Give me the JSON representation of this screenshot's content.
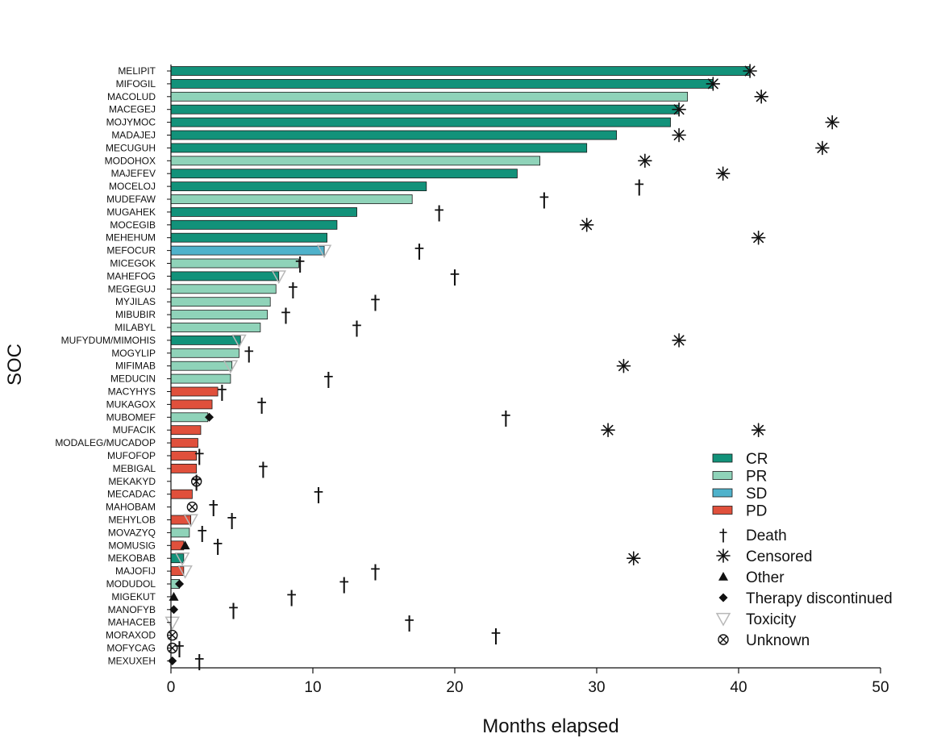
{
  "chart_data": {
    "type": "swimmer",
    "xlabel": "Months elapsed",
    "ylabel": "SOC",
    "xlim": [
      0,
      50
    ],
    "xticks": [
      0,
      10,
      20,
      30,
      40,
      50
    ],
    "colors": {
      "CR": "#12927a",
      "PR": "#8fd3b9",
      "SD": "#4fb2cb",
      "PD": "#e0503c",
      "marker": "#111111",
      "toxicity": "#b8b8b8"
    },
    "legend": {
      "position": "lower-right",
      "response": [
        {
          "key": "CR",
          "label": "CR"
        },
        {
          "key": "PR",
          "label": "PR"
        },
        {
          "key": "SD",
          "label": "SD"
        },
        {
          "key": "PD",
          "label": "PD"
        }
      ],
      "events": [
        {
          "key": "death",
          "label": "Death",
          "symbol": "†"
        },
        {
          "key": "censored",
          "label": "Censored",
          "symbol": "✳"
        },
        {
          "key": "other",
          "label": "Other",
          "symbol": "▲"
        },
        {
          "key": "discontinued",
          "label": "Therapy discontinued",
          "symbol": "◆"
        },
        {
          "key": "toxicity",
          "label": "Toxicity",
          "symbol": "▽"
        },
        {
          "key": "unknown",
          "label": "Unknown",
          "symbol": "⊗"
        }
      ]
    },
    "patients": [
      {
        "id": "MELIPIT",
        "response": "CR",
        "months": 40.8,
        "events": [
          {
            "type": "censored",
            "t": 40.8
          }
        ]
      },
      {
        "id": "MIFOGIL",
        "response": "CR",
        "months": 38.2,
        "events": [
          {
            "type": "censored",
            "t": 38.2
          }
        ]
      },
      {
        "id": "MACOLUD",
        "response": "PR",
        "months": 36.4,
        "events": [
          {
            "type": "censored",
            "t": 41.6
          }
        ]
      },
      {
        "id": "MACEGEJ",
        "response": "CR",
        "months": 35.8,
        "events": [
          {
            "type": "censored",
            "t": 35.8
          }
        ]
      },
      {
        "id": "MOJYMOC",
        "response": "CR",
        "months": 35.2,
        "events": [
          {
            "type": "censored",
            "t": 46.6
          }
        ]
      },
      {
        "id": "MADAJEJ",
        "response": "CR",
        "months": 31.4,
        "events": [
          {
            "type": "censored",
            "t": 35.8
          }
        ]
      },
      {
        "id": "MECUGUH",
        "response": "CR",
        "months": 29.3,
        "events": [
          {
            "type": "censored",
            "t": 45.9
          }
        ]
      },
      {
        "id": "MODOHOX",
        "response": "PR",
        "months": 26.0,
        "events": [
          {
            "type": "censored",
            "t": 33.4
          }
        ]
      },
      {
        "id": "MAJEFEV",
        "response": "CR",
        "months": 24.4,
        "events": [
          {
            "type": "censored",
            "t": 38.9
          }
        ]
      },
      {
        "id": "MOCELOJ",
        "response": "CR",
        "months": 18.0,
        "events": [
          {
            "type": "death",
            "t": 33.0
          }
        ]
      },
      {
        "id": "MUDEFAW",
        "response": "PR",
        "months": 17.0,
        "events": [
          {
            "type": "death",
            "t": 26.3
          }
        ]
      },
      {
        "id": "MUGAHEK",
        "response": "CR",
        "months": 13.1,
        "events": [
          {
            "type": "death",
            "t": 18.9
          }
        ]
      },
      {
        "id": "MOCEGIB",
        "response": "CR",
        "months": 11.7,
        "events": [
          {
            "type": "censored",
            "t": 29.3
          }
        ]
      },
      {
        "id": "MEHEHUM",
        "response": "CR",
        "months": 11.0,
        "events": [
          {
            "type": "censored",
            "t": 41.4
          }
        ]
      },
      {
        "id": "MEFOCUR",
        "response": "SD",
        "months": 10.8,
        "events": [
          {
            "type": "toxicity",
            "t": 10.8
          },
          {
            "type": "death",
            "t": 17.5
          }
        ]
      },
      {
        "id": "MICEGOK",
        "response": "PR",
        "months": 9.0,
        "events": [
          {
            "type": "death",
            "t": 9.1
          }
        ]
      },
      {
        "id": "MAHEFOG",
        "response": "CR",
        "months": 7.6,
        "events": [
          {
            "type": "toxicity",
            "t": 7.6
          },
          {
            "type": "death",
            "t": 20.0
          }
        ]
      },
      {
        "id": "MEGEGUJ",
        "response": "PR",
        "months": 7.4,
        "events": [
          {
            "type": "death",
            "t": 8.6
          }
        ]
      },
      {
        "id": "MYJILAS",
        "response": "PR",
        "months": 7.0,
        "events": [
          {
            "type": "death",
            "t": 14.4
          }
        ]
      },
      {
        "id": "MIBUBIR",
        "response": "PR",
        "months": 6.8,
        "events": [
          {
            "type": "death",
            "t": 8.1
          }
        ]
      },
      {
        "id": "MILABYL",
        "response": "PR",
        "months": 6.3,
        "events": [
          {
            "type": "death",
            "t": 13.1
          }
        ]
      },
      {
        "id": "MUFYDUM/MIMOHIS",
        "response": "CR",
        "months": 4.9,
        "events": [
          {
            "type": "toxicity",
            "t": 4.8
          },
          {
            "type": "censored",
            "t": 35.8
          }
        ]
      },
      {
        "id": "MOGYLIP",
        "response": "PR",
        "months": 4.8,
        "events": [
          {
            "type": "death",
            "t": 5.5
          }
        ]
      },
      {
        "id": "MIFIMAB",
        "response": "PR",
        "months": 4.3,
        "events": [
          {
            "type": "toxicity",
            "t": 4.2
          },
          {
            "type": "censored",
            "t": 31.9
          }
        ]
      },
      {
        "id": "MEDUCIN",
        "response": "PR",
        "months": 4.2,
        "events": [
          {
            "type": "death",
            "t": 11.1
          }
        ]
      },
      {
        "id": "MACYHYS",
        "response": "PD",
        "months": 3.3,
        "events": [
          {
            "type": "death",
            "t": 3.6
          }
        ]
      },
      {
        "id": "MUKAGOX",
        "response": "PD",
        "months": 2.9,
        "events": [
          {
            "type": "death",
            "t": 6.4
          }
        ]
      },
      {
        "id": "MUBOMEF",
        "response": "PR",
        "months": 2.6,
        "events": [
          {
            "type": "discontinued",
            "t": 2.7
          },
          {
            "type": "death",
            "t": 23.6
          }
        ]
      },
      {
        "id": "MUFACIK",
        "response": "PD",
        "months": 2.1,
        "events": [
          {
            "type": "censored",
            "t": 30.8
          },
          {
            "type": "censored",
            "t": 41.4
          }
        ]
      },
      {
        "id": "MODALEG/MUCADOP",
        "response": "PD",
        "months": 1.9,
        "events": []
      },
      {
        "id": "MUFOFOP",
        "response": "PD",
        "months": 1.8,
        "events": [
          {
            "type": "death",
            "t": 2.0
          }
        ]
      },
      {
        "id": "MEBIGAL",
        "response": "PD",
        "months": 1.8,
        "events": [
          {
            "type": "death",
            "t": 6.5
          }
        ]
      },
      {
        "id": "MEKAKYD",
        "response": "PD",
        "months": 0.0,
        "events": [
          {
            "type": "unknown",
            "t": 1.8
          },
          {
            "type": "death",
            "t": 1.8
          }
        ]
      },
      {
        "id": "MECADAC",
        "response": "PD",
        "months": 1.5,
        "events": [
          {
            "type": "death",
            "t": 10.4
          }
        ]
      },
      {
        "id": "MAHOBAM",
        "response": "PD",
        "months": 0.0,
        "events": [
          {
            "type": "unknown",
            "t": 1.5
          },
          {
            "type": "death",
            "t": 3.0
          }
        ]
      },
      {
        "id": "MEHYLOB",
        "response": "PD",
        "months": 1.4,
        "events": [
          {
            "type": "toxicity",
            "t": 1.4
          },
          {
            "type": "death",
            "t": 4.3
          }
        ]
      },
      {
        "id": "MOVAZYQ",
        "response": "PR",
        "months": 1.3,
        "events": [
          {
            "type": "death",
            "t": 2.2
          }
        ]
      },
      {
        "id": "MOMUSIG",
        "response": "PD",
        "months": 0.9,
        "events": [
          {
            "type": "other",
            "t": 1.0
          },
          {
            "type": "death",
            "t": 3.3
          }
        ]
      },
      {
        "id": "MEKOBAB",
        "response": "CR",
        "months": 0.9,
        "events": [
          {
            "type": "toxicity",
            "t": 0.8
          },
          {
            "type": "censored",
            "t": 32.6
          }
        ]
      },
      {
        "id": "MAJOFIJ",
        "response": "PD",
        "months": 0.9,
        "events": [
          {
            "type": "toxicity",
            "t": 1.0
          },
          {
            "type": "death",
            "t": 14.4
          }
        ]
      },
      {
        "id": "MODUDOL",
        "response": "PR",
        "months": 0.6,
        "events": [
          {
            "type": "discontinued",
            "t": 0.6
          },
          {
            "type": "death",
            "t": 12.2
          }
        ]
      },
      {
        "id": "MIGEKUT",
        "response": "PD",
        "months": 0.0,
        "events": [
          {
            "type": "other",
            "t": 0.2
          },
          {
            "type": "death",
            "t": 8.5
          }
        ]
      },
      {
        "id": "MANOFYB",
        "response": "PD",
        "months": 0.0,
        "events": [
          {
            "type": "discontinued",
            "t": 0.2
          },
          {
            "type": "death",
            "t": 4.4
          }
        ]
      },
      {
        "id": "MAHACEB",
        "response": "PD",
        "months": 0.0,
        "events": [
          {
            "type": "toxicity",
            "t": 0.1
          },
          {
            "type": "death",
            "t": 16.8
          }
        ]
      },
      {
        "id": "MORAXOD",
        "response": "PD",
        "months": 0.0,
        "events": [
          {
            "type": "other",
            "t": 0.1
          },
          {
            "type": "unknown",
            "t": 0.1
          },
          {
            "type": "death",
            "t": 22.9
          }
        ]
      },
      {
        "id": "MOFYCAG",
        "response": "PD",
        "months": 0.0,
        "events": [
          {
            "type": "unknown",
            "t": 0.1
          },
          {
            "type": "death",
            "t": 0.6
          }
        ]
      },
      {
        "id": "MEXUXEH",
        "response": "PD",
        "months": 0.0,
        "events": [
          {
            "type": "discontinued",
            "t": 0.1
          },
          {
            "type": "death",
            "t": 2.0
          }
        ]
      }
    ]
  }
}
